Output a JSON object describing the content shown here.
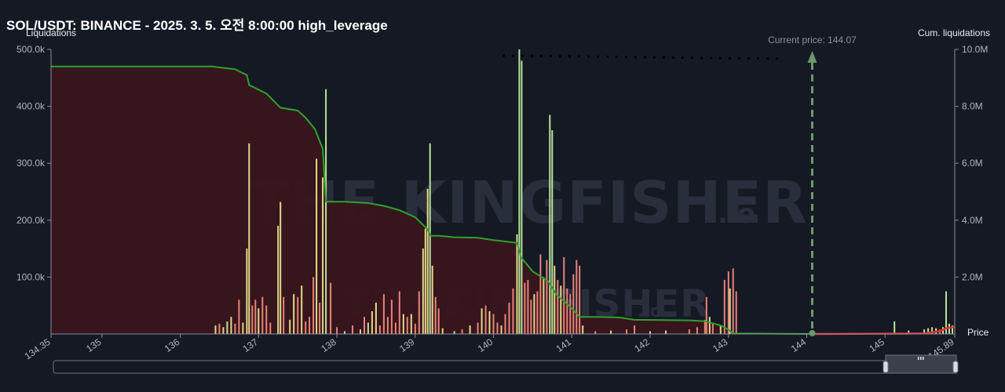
{
  "title": "SOL/USDT: BINANCE - 2025. 3. 5. 오전 8:00:00 high_leverage",
  "watermark": "THE KINGFISHER.io",
  "colors": {
    "background": "#151924",
    "area_fill": "#3a151c",
    "cum_short_line": "#2ea12e",
    "cum_long_line": "#e03030",
    "bar_green": "#b8e39a",
    "bar_yellow": "#e3d98a",
    "bar_red": "#e8837a",
    "current_price_marker": "#6a9a6a",
    "axis_text": "#b0b4bf"
  },
  "chart_data": {
    "type": "bar",
    "title": "SOL/USDT: BINANCE - 2025. 3. 5. 오전 8:00:00 high_leverage",
    "xlabel": "Price",
    "ylabel_left": "Liquidations",
    "ylabel_right": "Cum. liquidations",
    "xlim": [
      134.35,
      145.89
    ],
    "ylim_left": [
      0,
      500000
    ],
    "ylim_right": [
      0,
      10000000
    ],
    "x_ticks": [
      "134.35",
      "135",
      "136",
      "137",
      "138",
      "139",
      "140",
      "141",
      "142",
      "143",
      "144",
      "145",
      "145.89"
    ],
    "y_left_ticks": [
      "100.0k",
      "200.0k",
      "300.0k",
      "400.0k",
      "500.0k"
    ],
    "y_right_ticks": [
      "2.0M",
      "4.0M",
      "6.0M",
      "8.0M",
      "10.0M"
    ],
    "current_price": 144.07,
    "current_price_label": "Current price: 144.07",
    "grid": false,
    "bars": [
      {
        "price": 136.45,
        "value": 15000,
        "color": "yellow"
      },
      {
        "price": 136.5,
        "value": 18000,
        "color": "red"
      },
      {
        "price": 136.55,
        "value": 12000,
        "color": "yellow"
      },
      {
        "price": 136.6,
        "value": 22000,
        "color": "green"
      },
      {
        "price": 136.65,
        "value": 30000,
        "color": "yellow"
      },
      {
        "price": 136.7,
        "value": 18000,
        "color": "red"
      },
      {
        "price": 136.75,
        "value": 60000,
        "color": "red"
      },
      {
        "price": 136.8,
        "value": 20000,
        "color": "yellow"
      },
      {
        "price": 136.85,
        "value": 150000,
        "color": "yellow"
      },
      {
        "price": 136.88,
        "value": 335000,
        "color": "yellow"
      },
      {
        "price": 136.92,
        "value": 50000,
        "color": "red"
      },
      {
        "price": 136.96,
        "value": 60000,
        "color": "red"
      },
      {
        "price": 137.0,
        "value": 45000,
        "color": "yellow"
      },
      {
        "price": 137.05,
        "value": 65000,
        "color": "red"
      },
      {
        "price": 137.1,
        "value": 50000,
        "color": "red"
      },
      {
        "price": 137.15,
        "value": 20000,
        "color": "red"
      },
      {
        "price": 137.25,
        "value": 190000,
        "color": "yellow"
      },
      {
        "price": 137.28,
        "value": 232000,
        "color": "yellow"
      },
      {
        "price": 137.32,
        "value": 65000,
        "color": "red"
      },
      {
        "price": 137.4,
        "value": 25000,
        "color": "yellow"
      },
      {
        "price": 137.45,
        "value": 70000,
        "color": "yellow"
      },
      {
        "price": 137.5,
        "value": 65000,
        "color": "red"
      },
      {
        "price": 137.55,
        "value": 85000,
        "color": "yellow"
      },
      {
        "price": 137.6,
        "value": 22000,
        "color": "red"
      },
      {
        "price": 137.65,
        "value": 30000,
        "color": "red"
      },
      {
        "price": 137.7,
        "value": 100000,
        "color": "red"
      },
      {
        "price": 137.74,
        "value": 308000,
        "color": "yellow"
      },
      {
        "price": 137.78,
        "value": 55000,
        "color": "red"
      },
      {
        "price": 137.82,
        "value": 275000,
        "color": "yellow"
      },
      {
        "price": 137.86,
        "value": 430000,
        "color": "green"
      },
      {
        "price": 137.92,
        "value": 90000,
        "color": "red"
      },
      {
        "price": 138.0,
        "value": 12000,
        "color": "red"
      },
      {
        "price": 138.1,
        "value": 5000,
        "color": "green"
      },
      {
        "price": 138.2,
        "value": 15000,
        "color": "red"
      },
      {
        "price": 138.3,
        "value": 8000,
        "color": "yellow"
      },
      {
        "price": 138.35,
        "value": 30000,
        "color": "red"
      },
      {
        "price": 138.4,
        "value": 20000,
        "color": "green"
      },
      {
        "price": 138.45,
        "value": 40000,
        "color": "yellow"
      },
      {
        "price": 138.5,
        "value": 55000,
        "color": "yellow"
      },
      {
        "price": 138.55,
        "value": 15000,
        "color": "red"
      },
      {
        "price": 138.6,
        "value": 70000,
        "color": "red"
      },
      {
        "price": 138.65,
        "value": 30000,
        "color": "red"
      },
      {
        "price": 138.7,
        "value": 60000,
        "color": "red"
      },
      {
        "price": 138.75,
        "value": 20000,
        "color": "red"
      },
      {
        "price": 138.8,
        "value": 75000,
        "color": "red"
      },
      {
        "price": 138.85,
        "value": 35000,
        "color": "yellow"
      },
      {
        "price": 138.9,
        "value": 30000,
        "color": "red"
      },
      {
        "price": 138.95,
        "value": 35000,
        "color": "yellow"
      },
      {
        "price": 139.0,
        "value": 18000,
        "color": "red"
      },
      {
        "price": 139.05,
        "value": 75000,
        "color": "red"
      },
      {
        "price": 139.1,
        "value": 150000,
        "color": "yellow"
      },
      {
        "price": 139.13,
        "value": 185000,
        "color": "yellow"
      },
      {
        "price": 139.16,
        "value": 255000,
        "color": "yellow"
      },
      {
        "price": 139.19,
        "value": 335000,
        "color": "green"
      },
      {
        "price": 139.22,
        "value": 120000,
        "color": "yellow"
      },
      {
        "price": 139.26,
        "value": 65000,
        "color": "red"
      },
      {
        "price": 139.3,
        "value": 45000,
        "color": "red"
      },
      {
        "price": 139.35,
        "value": 10000,
        "color": "yellow"
      },
      {
        "price": 139.5,
        "value": 5000,
        "color": "green"
      },
      {
        "price": 139.6,
        "value": 8000,
        "color": "red"
      },
      {
        "price": 139.7,
        "value": 15000,
        "color": "yellow"
      },
      {
        "price": 139.8,
        "value": 20000,
        "color": "red"
      },
      {
        "price": 139.85,
        "value": 45000,
        "color": "yellow"
      },
      {
        "price": 139.9,
        "value": 50000,
        "color": "red"
      },
      {
        "price": 139.95,
        "value": 40000,
        "color": "yellow"
      },
      {
        "price": 140.0,
        "value": 35000,
        "color": "red"
      },
      {
        "price": 140.05,
        "value": 20000,
        "color": "red"
      },
      {
        "price": 140.1,
        "value": 15000,
        "color": "yellow"
      },
      {
        "price": 140.15,
        "value": 35000,
        "color": "red"
      },
      {
        "price": 140.2,
        "value": 55000,
        "color": "red"
      },
      {
        "price": 140.25,
        "value": 80000,
        "color": "red"
      },
      {
        "price": 140.3,
        "value": 175000,
        "color": "yellow"
      },
      {
        "price": 140.33,
        "value": 500000,
        "color": "green"
      },
      {
        "price": 140.36,
        "value": 480000,
        "color": "green"
      },
      {
        "price": 140.4,
        "value": 90000,
        "color": "red"
      },
      {
        "price": 140.44,
        "value": 95000,
        "color": "red"
      },
      {
        "price": 140.48,
        "value": 60000,
        "color": "red"
      },
      {
        "price": 140.52,
        "value": 70000,
        "color": "yellow"
      },
      {
        "price": 140.56,
        "value": 75000,
        "color": "red"
      },
      {
        "price": 140.6,
        "value": 140000,
        "color": "red"
      },
      {
        "price": 140.64,
        "value": 100000,
        "color": "yellow"
      },
      {
        "price": 140.68,
        "value": 130000,
        "color": "red"
      },
      {
        "price": 140.72,
        "value": 385000,
        "color": "green"
      },
      {
        "price": 140.75,
        "value": 358000,
        "color": "green"
      },
      {
        "price": 140.78,
        "value": 120000,
        "color": "yellow"
      },
      {
        "price": 140.82,
        "value": 95000,
        "color": "red"
      },
      {
        "price": 140.86,
        "value": 85000,
        "color": "yellow"
      },
      {
        "price": 140.9,
        "value": 135000,
        "color": "red"
      },
      {
        "price": 140.94,
        "value": 80000,
        "color": "red"
      },
      {
        "price": 140.98,
        "value": 70000,
        "color": "red"
      },
      {
        "price": 141.02,
        "value": 105000,
        "color": "red"
      },
      {
        "price": 141.06,
        "value": 130000,
        "color": "red"
      },
      {
        "price": 141.1,
        "value": 120000,
        "color": "red"
      },
      {
        "price": 141.14,
        "value": 15000,
        "color": "yellow"
      },
      {
        "price": 141.3,
        "value": 5000,
        "color": "red"
      },
      {
        "price": 141.5,
        "value": 6000,
        "color": "yellow"
      },
      {
        "price": 141.7,
        "value": 8000,
        "color": "red"
      },
      {
        "price": 141.8,
        "value": 15000,
        "color": "red"
      },
      {
        "price": 142.0,
        "value": 5000,
        "color": "green"
      },
      {
        "price": 142.2,
        "value": 6000,
        "color": "yellow"
      },
      {
        "price": 142.5,
        "value": 8000,
        "color": "red"
      },
      {
        "price": 142.6,
        "value": 12000,
        "color": "red"
      },
      {
        "price": 142.7,
        "value": 25000,
        "color": "red"
      },
      {
        "price": 142.72,
        "value": 65000,
        "color": "red"
      },
      {
        "price": 142.76,
        "value": 30000,
        "color": "yellow"
      },
      {
        "price": 142.8,
        "value": 20000,
        "color": "red"
      },
      {
        "price": 142.9,
        "value": 15000,
        "color": "yellow"
      },
      {
        "price": 142.95,
        "value": 95000,
        "color": "red"
      },
      {
        "price": 143.0,
        "value": 110000,
        "color": "red"
      },
      {
        "price": 143.02,
        "value": 80000,
        "color": "yellow"
      },
      {
        "price": 143.06,
        "value": 115000,
        "color": "red"
      },
      {
        "price": 143.1,
        "value": 75000,
        "color": "red"
      },
      {
        "price": 145.12,
        "value": 22000,
        "color": "green"
      },
      {
        "price": 145.3,
        "value": 6000,
        "color": "green"
      },
      {
        "price": 145.5,
        "value": 8000,
        "color": "green"
      },
      {
        "price": 145.55,
        "value": 10000,
        "color": "yellow"
      },
      {
        "price": 145.6,
        "value": 12000,
        "color": "green"
      },
      {
        "price": 145.65,
        "value": 10000,
        "color": "yellow"
      },
      {
        "price": 145.7,
        "value": 8000,
        "color": "red"
      },
      {
        "price": 145.74,
        "value": 12000,
        "color": "yellow"
      },
      {
        "price": 145.78,
        "value": 75000,
        "color": "green"
      },
      {
        "price": 145.82,
        "value": 18000,
        "color": "green"
      },
      {
        "price": 145.86,
        "value": 15000,
        "color": "green"
      }
    ],
    "cumulative_short_side": [
      [
        134.35,
        9.4
      ],
      [
        136.4,
        9.4
      ],
      [
        136.7,
        9.3
      ],
      [
        136.85,
        9.1
      ],
      [
        136.88,
        8.75
      ],
      [
        137.1,
        8.45
      ],
      [
        137.28,
        7.95
      ],
      [
        137.5,
        7.85
      ],
      [
        137.6,
        7.6
      ],
      [
        137.72,
        7.2
      ],
      [
        137.82,
        6.5
      ],
      [
        137.86,
        4.65
      ],
      [
        138.1,
        4.65
      ],
      [
        138.4,
        4.6
      ],
      [
        138.6,
        4.5
      ],
      [
        138.8,
        4.35
      ],
      [
        139.0,
        4.1
      ],
      [
        139.15,
        3.7
      ],
      [
        139.2,
        3.45
      ],
      [
        139.3,
        3.45
      ],
      [
        139.5,
        3.4
      ],
      [
        139.8,
        3.38
      ],
      [
        140.0,
        3.3
      ],
      [
        140.3,
        3.2
      ],
      [
        140.35,
        2.7
      ],
      [
        140.5,
        2.2
      ],
      [
        140.7,
        1.85
      ],
      [
        140.8,
        1.4
      ],
      [
        140.9,
        1.15
      ],
      [
        141.0,
        0.9
      ],
      [
        141.1,
        0.6
      ],
      [
        141.3,
        0.6
      ],
      [
        141.6,
        0.58
      ],
      [
        141.8,
        0.5
      ],
      [
        142.5,
        0.48
      ],
      [
        142.7,
        0.45
      ],
      [
        142.9,
        0.3
      ],
      [
        143.0,
        0.15
      ],
      [
        143.06,
        0.02
      ],
      [
        144.07,
        0.0
      ]
    ],
    "cumulative_long_side": [
      [
        144.07,
        0.0
      ],
      [
        145.5,
        0.02
      ],
      [
        145.7,
        0.1
      ],
      [
        145.78,
        0.2
      ],
      [
        145.89,
        0.25
      ]
    ]
  }
}
